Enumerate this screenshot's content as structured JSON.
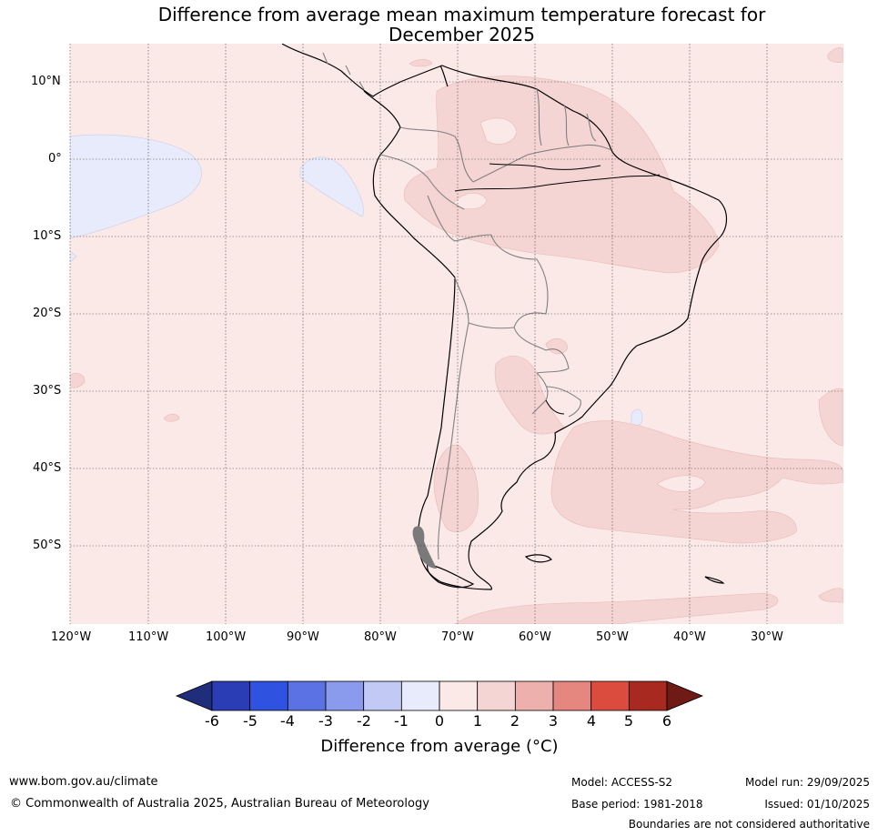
{
  "title": {
    "line1": "Difference from average mean maximum temperature forecast for",
    "line2": "December 2025"
  },
  "map": {
    "background_anomaly_range": "0 to 1",
    "lat_labels": [
      "10°N",
      "0°",
      "10°S",
      "20°S",
      "30°S",
      "40°S",
      "50°S"
    ],
    "lon_labels": [
      "120°W",
      "110°W",
      "100°W",
      "90°W",
      "80°W",
      "70°W",
      "60°W",
      "50°W",
      "40°W",
      "30°W"
    ]
  },
  "colorbar": {
    "labels": [
      "-6",
      "-5",
      "-4",
      "-3",
      "-2",
      "-1",
      "0",
      "1",
      "2",
      "3",
      "4",
      "5",
      "6"
    ],
    "colors": [
      "#1f2d7a",
      "#2a3db4",
      "#2f52e0",
      "#5b72e5",
      "#8a9bee",
      "#c3c9f5",
      "#e8ebfb",
      "#fbe9e8",
      "#f5d5d3",
      "#edb0ac",
      "#e6877f",
      "#db4c3f",
      "#a8291f",
      "#6f1a14"
    ],
    "title": "Difference from average (°C)"
  },
  "footer": {
    "website": "www.bom.gov.au/climate",
    "copyright": "© Commonwealth of Australia 2025, Australian Bureau of Meteorology",
    "model": "Model: ACCESS-S2",
    "base_period": "Base period: 1981-2018",
    "model_run": "Model run: 29/09/2025",
    "issued": "Issued: 01/10/2025",
    "disclaimer": "Boundaries are not considered authoritative"
  }
}
